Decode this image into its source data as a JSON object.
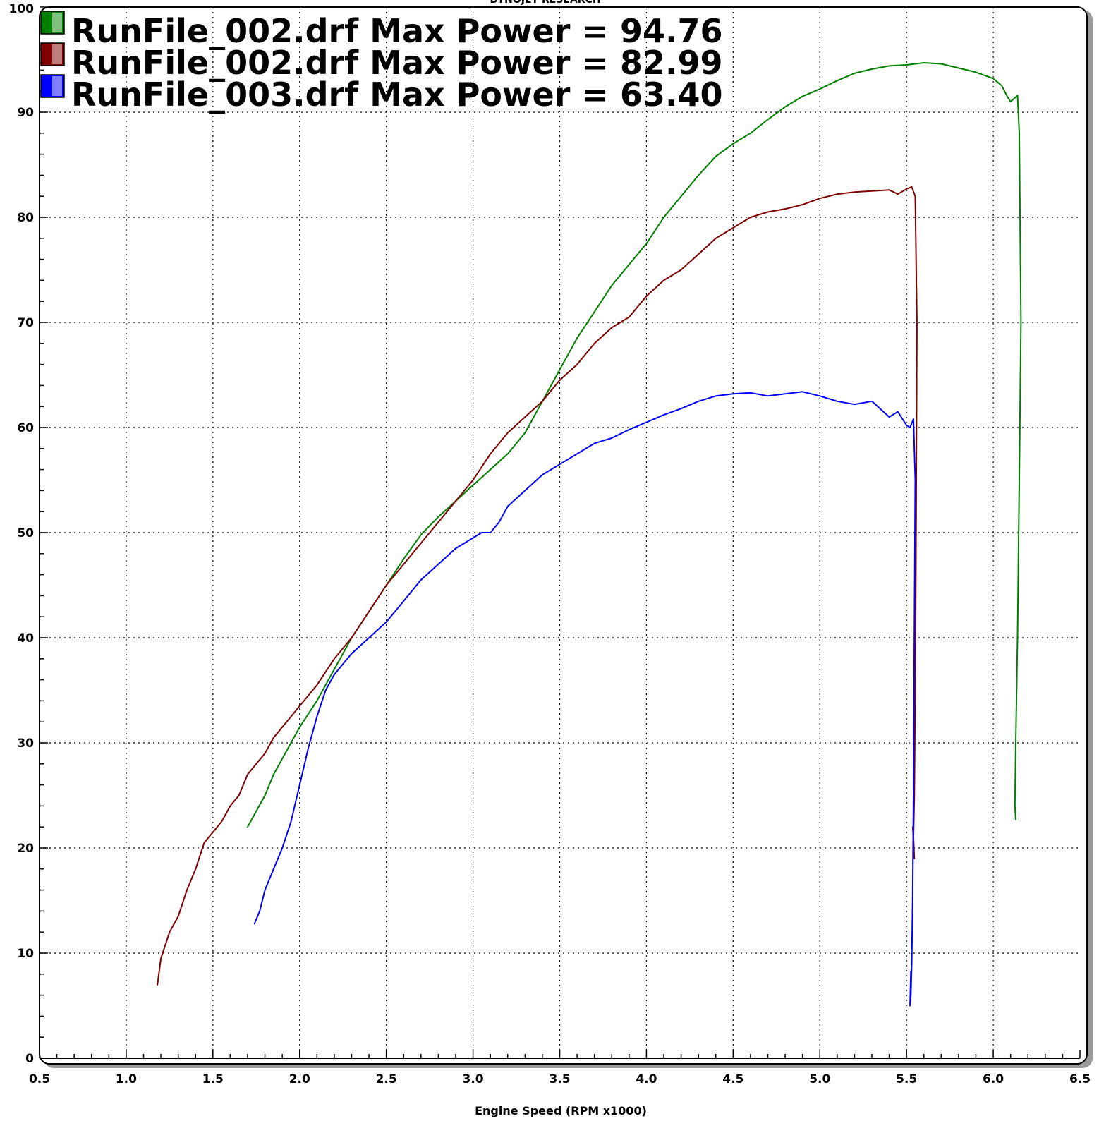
{
  "chart_data": {
    "type": "line",
    "title": "DYNOJET RESEARCH",
    "xlabel": "Engine Speed (RPM x1000)",
    "ylabel": "",
    "xlim": [
      0.5,
      6.5
    ],
    "ylim": [
      0,
      100
    ],
    "x_ticks": [
      "0.5",
      "1.0",
      "1.5",
      "2.0",
      "2.5",
      "3.0",
      "3.5",
      "4.0",
      "4.5",
      "5.0",
      "5.5",
      "6.0",
      "6.5"
    ],
    "y_ticks": [
      "0",
      "10",
      "20",
      "30",
      "40",
      "50",
      "60",
      "70",
      "80",
      "90",
      "100"
    ],
    "grid": true,
    "legend_position": "top-left",
    "series": [
      {
        "name": "RunFile_002.drf Max Power = 94.76",
        "color": "#008000",
        "x": [
          1.7,
          1.75,
          1.8,
          1.85,
          1.9,
          1.95,
          2.0,
          2.1,
          2.2,
          2.3,
          2.4,
          2.5,
          2.6,
          2.7,
          2.8,
          2.9,
          3.0,
          3.1,
          3.2,
          3.3,
          3.4,
          3.5,
          3.6,
          3.7,
          3.8,
          3.9,
          4.0,
          4.1,
          4.2,
          4.3,
          4.4,
          4.5,
          4.6,
          4.7,
          4.8,
          4.9,
          5.0,
          5.1,
          5.2,
          5.3,
          5.4,
          5.5,
          5.6,
          5.7,
          5.8,
          5.9,
          6.0,
          6.05,
          6.08,
          6.1,
          6.12,
          6.14,
          6.15,
          6.16,
          6.15,
          6.14,
          6.13,
          6.125,
          6.13
        ],
        "y": [
          22.0,
          23.5,
          25.0,
          27.0,
          28.5,
          30.0,
          31.5,
          34.0,
          37.0,
          40.0,
          42.5,
          45.0,
          47.5,
          49.8,
          51.5,
          53.0,
          54.5,
          56.0,
          57.5,
          59.5,
          62.5,
          65.5,
          68.5,
          71.0,
          73.5,
          75.5,
          77.5,
          80.0,
          82.0,
          84.0,
          85.8,
          87.0,
          88.0,
          89.3,
          90.5,
          91.5,
          92.2,
          93.0,
          93.7,
          94.1,
          94.4,
          94.5,
          94.7,
          94.6,
          94.2,
          93.8,
          93.2,
          92.5,
          91.5,
          91.0,
          91.3,
          91.6,
          88.0,
          70.0,
          55.0,
          40.0,
          30.0,
          24.0,
          22.7
        ]
      },
      {
        "name": "RunFile_002.drf Max Power = 82.99",
        "color": "#800000",
        "x": [
          1.18,
          1.2,
          1.25,
          1.3,
          1.35,
          1.4,
          1.45,
          1.5,
          1.55,
          1.6,
          1.65,
          1.7,
          1.75,
          1.8,
          1.85,
          1.9,
          1.95,
          2.0,
          2.1,
          2.2,
          2.3,
          2.4,
          2.5,
          2.6,
          2.7,
          2.8,
          2.9,
          3.0,
          3.1,
          3.2,
          3.3,
          3.4,
          3.5,
          3.6,
          3.7,
          3.8,
          3.9,
          4.0,
          4.1,
          4.2,
          4.3,
          4.4,
          4.5,
          4.6,
          4.7,
          4.8,
          4.9,
          5.0,
          5.1,
          5.2,
          5.3,
          5.4,
          5.45,
          5.5,
          5.53,
          5.55,
          5.56,
          5.555,
          5.55,
          5.545,
          5.54,
          5.535,
          5.54,
          5.545
        ],
        "y": [
          7.0,
          9.5,
          12.0,
          13.5,
          16.0,
          18.0,
          20.5,
          21.5,
          22.5,
          24.0,
          25.0,
          27.0,
          28.0,
          29.0,
          30.5,
          31.5,
          32.5,
          33.5,
          35.5,
          38.0,
          40.0,
          42.5,
          45.0,
          47.0,
          49.0,
          51.0,
          53.0,
          55.0,
          57.5,
          59.5,
          61.0,
          62.5,
          64.5,
          66.0,
          68.0,
          69.5,
          70.5,
          72.5,
          74.0,
          75.0,
          76.5,
          78.0,
          79.0,
          80.0,
          80.5,
          80.8,
          81.2,
          81.8,
          82.2,
          82.4,
          82.5,
          82.6,
          82.2,
          82.7,
          82.9,
          82.0,
          70.0,
          50.0,
          35.0,
          25.0,
          21.0,
          22.0,
          21.0,
          19.0
        ]
      },
      {
        "name": "RunFile_003.drf Max Power = 63.40",
        "color": "#0000ff",
        "x": [
          1.74,
          1.77,
          1.8,
          1.85,
          1.9,
          1.95,
          2.0,
          2.05,
          2.1,
          2.15,
          2.2,
          2.3,
          2.4,
          2.5,
          2.6,
          2.7,
          2.8,
          2.9,
          3.0,
          3.05,
          3.1,
          3.15,
          3.2,
          3.3,
          3.4,
          3.5,
          3.6,
          3.7,
          3.8,
          3.9,
          4.0,
          4.1,
          4.2,
          4.3,
          4.4,
          4.5,
          4.6,
          4.7,
          4.8,
          4.9,
          5.0,
          5.1,
          5.2,
          5.3,
          5.4,
          5.45,
          5.5,
          5.52,
          5.54,
          5.55,
          5.545,
          5.54,
          5.535,
          5.53,
          5.525,
          5.52,
          5.525
        ],
        "y": [
          12.8,
          14.0,
          16.0,
          18.0,
          20.0,
          22.5,
          26.0,
          29.5,
          32.5,
          35.0,
          36.5,
          38.5,
          40.0,
          41.5,
          43.5,
          45.5,
          47.0,
          48.5,
          49.5,
          50.0,
          50.0,
          51.0,
          52.5,
          54.0,
          55.5,
          56.5,
          57.5,
          58.5,
          59.0,
          59.8,
          60.5,
          61.2,
          61.8,
          62.5,
          63.0,
          63.2,
          63.3,
          63.0,
          63.2,
          63.4,
          63.0,
          62.5,
          62.2,
          62.5,
          61.0,
          61.5,
          60.2,
          60.0,
          60.8,
          55.0,
          40.0,
          25.0,
          15.0,
          9.0,
          6.0,
          5.0,
          8.3
        ]
      }
    ]
  }
}
